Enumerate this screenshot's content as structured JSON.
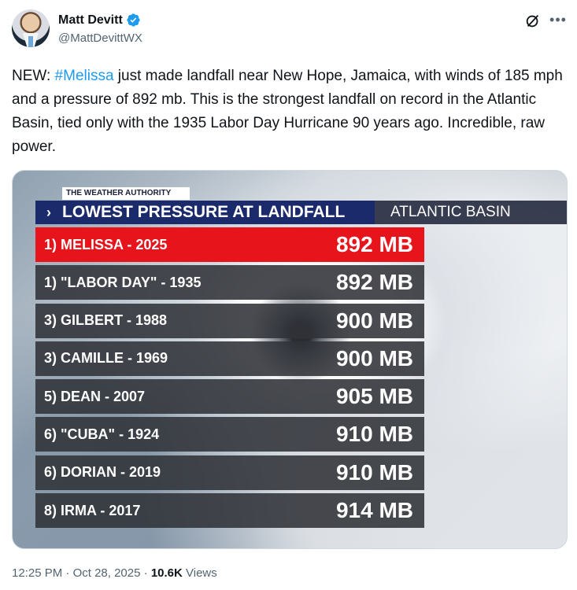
{
  "author": {
    "name": "Matt Devitt",
    "handle": "@MattDevittWX"
  },
  "tweet": {
    "prefix": "NEW: ",
    "hashtag": "#Melissa",
    "body": " just made landfall near New Hope, Jamaica, with winds of 185 mph and a pressure of 892 mb. This is the strongest landfall on record in the Atlantic Basin, tied only with the 1935 Labor Day Hurricane 90 years ago. Incredible, raw power."
  },
  "graphic": {
    "brand": "THE WEATHER AUTHORITY",
    "chevron": "›",
    "title": "LOWEST PRESSURE AT LANDFALL",
    "subtitle": "ATLANTIC BASIN",
    "rows": [
      {
        "label": "1) MELISSA - 2025",
        "value": "892 MB"
      },
      {
        "label": "1) \"LABOR DAY\" - 1935",
        "value": "892 MB"
      },
      {
        "label": "3) GILBERT - 1988",
        "value": "900 MB"
      },
      {
        "label": "3) CAMILLE - 1969",
        "value": "900 MB"
      },
      {
        "label": "5) DEAN - 2007",
        "value": "905 MB"
      },
      {
        "label": "6) \"CUBA\" - 1924",
        "value": "910 MB"
      },
      {
        "label": "6) DORIAN - 2019",
        "value": "910 MB"
      },
      {
        "label": "8) IRMA - 2017",
        "value": "914 MB"
      }
    ],
    "highlight_color": "#e8141b",
    "title_color": "#1b2a6b"
  },
  "footer": {
    "time": "12:25 PM",
    "sep1": " · ",
    "date": "Oct 28, 2025",
    "sep2": " · ",
    "views_count": "10.6K",
    "views_label": " Views"
  },
  "icons": {
    "verified": "verified-badge-icon",
    "grok": "grok-icon",
    "more": "more-icon"
  },
  "colors": {
    "link": "#1d9bf0",
    "verified": "#1d9bf0",
    "secondary_text": "#536471"
  }
}
